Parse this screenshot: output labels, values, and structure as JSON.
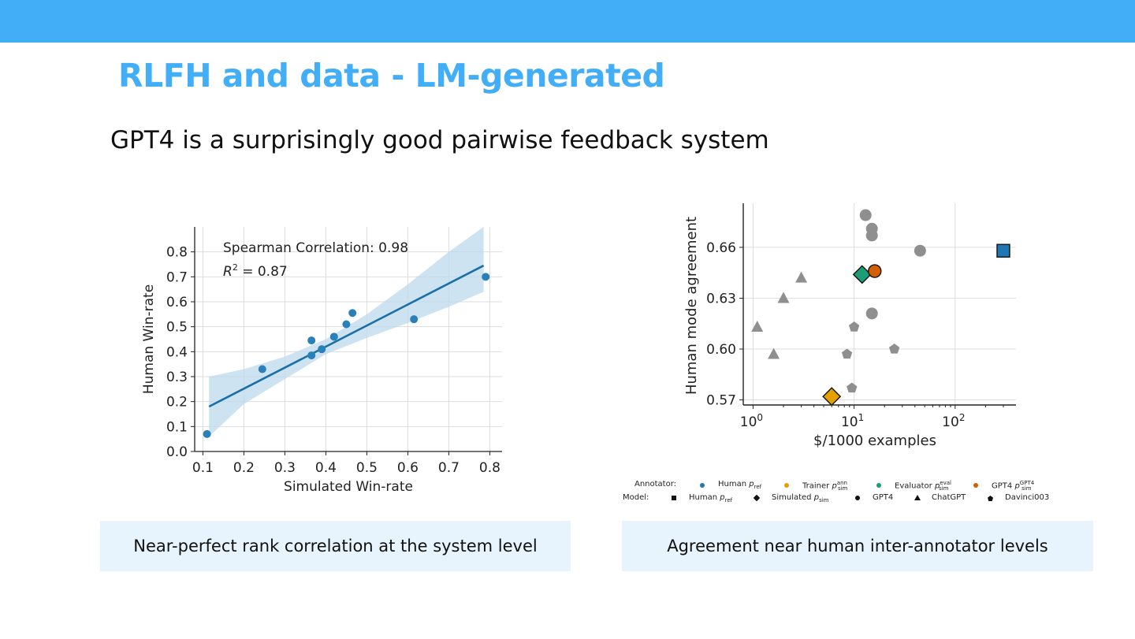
{
  "slide": {
    "title": "RLFH and data - LM-generated",
    "subtitle": "GPT4 is a surprisingly good pairwise feedback system",
    "captions": {
      "left": "Near-perfect rank correlation at the system level",
      "right": "Agreement near human inter-annotator levels"
    },
    "colors": {
      "bar": "#42aef8",
      "title": "#42aef8",
      "caption_bg": "#e8f4fd"
    }
  },
  "chart_data": [
    {
      "type": "scatter",
      "xlabel": "Simulated Win-rate",
      "ylabel": "Human Win-rate",
      "xlim": [
        0.08,
        0.83
      ],
      "ylim": [
        0.0,
        0.9
      ],
      "xticks": [
        0.1,
        0.2,
        0.3,
        0.4,
        0.5,
        0.6,
        0.7,
        0.8
      ],
      "yticks": [
        0.0,
        0.1,
        0.2,
        0.3,
        0.4,
        0.5,
        0.6,
        0.7,
        0.8
      ],
      "xtick_labels": [
        "0.1",
        "0.2",
        "0.3",
        "0.4",
        "0.5",
        "0.6",
        "0.7",
        "0.8"
      ],
      "ytick_labels": [
        "0.0",
        "0.1",
        "0.2",
        "0.3",
        "0.4",
        "0.5",
        "0.6",
        "0.7",
        "0.8"
      ],
      "grid": true,
      "annotations": [
        "Spearman Correlation: 0.98",
        "R",
        "2",
        " = 0.87"
      ],
      "points": [
        {
          "x": 0.11,
          "y": 0.07
        },
        {
          "x": 0.245,
          "y": 0.33
        },
        {
          "x": 0.365,
          "y": 0.445
        },
        {
          "x": 0.365,
          "y": 0.385
        },
        {
          "x": 0.39,
          "y": 0.41
        },
        {
          "x": 0.42,
          "y": 0.46
        },
        {
          "x": 0.45,
          "y": 0.51
        },
        {
          "x": 0.465,
          "y": 0.555
        },
        {
          "x": 0.615,
          "y": 0.53
        },
        {
          "x": 0.79,
          "y": 0.7
        }
      ],
      "fit_line": [
        {
          "x": 0.115,
          "y": 0.18
        },
        {
          "x": 0.785,
          "y": 0.745
        }
      ],
      "ci_band": {
        "x": [
          0.115,
          0.2,
          0.3,
          0.4,
          0.5,
          0.6,
          0.7,
          0.785
        ],
        "lower": [
          0.06,
          0.19,
          0.29,
          0.39,
          0.455,
          0.515,
          0.58,
          0.64
        ],
        "upper": [
          0.3,
          0.33,
          0.38,
          0.45,
          0.55,
          0.67,
          0.8,
          0.93
        ]
      },
      "colors": {
        "points": "#2a80b9",
        "line": "#1b6fa8",
        "band": "#bcd9ec"
      }
    },
    {
      "type": "scatter",
      "xlabel": "$/1000 examples",
      "ylabel": "Human mode agreement",
      "xscale": "log",
      "xlim": [
        0.8,
        400
      ],
      "ylim": [
        0.567,
        0.686
      ],
      "xticks": [
        1,
        10,
        100
      ],
      "xtick_labels": [
        "10",
        "0",
        "10",
        "1",
        "10",
        "2"
      ],
      "yticks": [
        0.57,
        0.6,
        0.63,
        0.66
      ],
      "ytick_labels": [
        "0.57",
        "0.60",
        "0.63",
        "0.66"
      ],
      "grid": true,
      "points": [
        {
          "x": 1.1,
          "y": 0.613,
          "model": "ChatGPT",
          "annotator": "none",
          "marker": "triangle",
          "color": "#8f8f8f"
        },
        {
          "x": 1.6,
          "y": 0.597,
          "model": "ChatGPT",
          "annotator": "none",
          "marker": "triangle",
          "color": "#8f8f8f"
        },
        {
          "x": 2.0,
          "y": 0.63,
          "model": "ChatGPT",
          "annotator": "none",
          "marker": "triangle",
          "color": "#8f8f8f"
        },
        {
          "x": 3.0,
          "y": 0.642,
          "model": "ChatGPT",
          "annotator": "none",
          "marker": "triangle",
          "color": "#8f8f8f"
        },
        {
          "x": 8.5,
          "y": 0.597,
          "model": "Davinci003",
          "annotator": "none",
          "marker": "pentagon",
          "color": "#8f8f8f"
        },
        {
          "x": 9.5,
          "y": 0.577,
          "model": "Davinci003",
          "annotator": "none",
          "marker": "pentagon",
          "color": "#8f8f8f"
        },
        {
          "x": 10.0,
          "y": 0.613,
          "model": "Davinci003",
          "annotator": "none",
          "marker": "pentagon",
          "color": "#8f8f8f"
        },
        {
          "x": 25.0,
          "y": 0.6,
          "model": "Davinci003",
          "annotator": "none",
          "marker": "pentagon",
          "color": "#8f8f8f"
        },
        {
          "x": 13.0,
          "y": 0.679,
          "model": "GPT4",
          "annotator": "none",
          "marker": "circle",
          "color": "#8f8f8f"
        },
        {
          "x": 15.0,
          "y": 0.671,
          "model": "GPT4",
          "annotator": "none",
          "marker": "circle",
          "color": "#8f8f8f"
        },
        {
          "x": 15.0,
          "y": 0.667,
          "model": "GPT4",
          "annotator": "none",
          "marker": "circle",
          "color": "#8f8f8f"
        },
        {
          "x": 15.0,
          "y": 0.621,
          "model": "GPT4",
          "annotator": "none",
          "marker": "circle",
          "color": "#8f8f8f"
        },
        {
          "x": 45.0,
          "y": 0.658,
          "model": "GPT4",
          "annotator": "none",
          "marker": "circle",
          "color": "#8f8f8f"
        },
        {
          "x": 12.0,
          "y": 0.644,
          "model": "Simulated",
          "annotator": "Evaluator",
          "marker": "diamond",
          "color": "#1b9e77"
        },
        {
          "x": 16.0,
          "y": 0.646,
          "model": "GPT4",
          "annotator": "GPT4",
          "marker": "circle",
          "color": "#d55e00"
        },
        {
          "x": 6.0,
          "y": 0.572,
          "model": "Simulated",
          "annotator": "Trainer",
          "marker": "diamond",
          "color": "#e69f00"
        },
        {
          "x": 300.0,
          "y": 0.658,
          "model": "Human",
          "annotator": "Human",
          "marker": "square",
          "color": "#1f77b4"
        }
      ],
      "legend": {
        "annotator_title": "Annotator:",
        "annotator_items": [
          {
            "label": "Human",
            "sub": "ref",
            "sup": "",
            "color": "#1f77b4"
          },
          {
            "label": "Trainer",
            "sub": "sim",
            "sup": "ann",
            "color": "#e69f00"
          },
          {
            "label": "Evaluator",
            "sub": "sim",
            "sup": "eval",
            "color": "#1b9e77"
          },
          {
            "label": "GPT4",
            "sub": "sim",
            "sup": "GPT4",
            "color": "#d55e00"
          }
        ],
        "model_title": "Model:",
        "model_items": [
          {
            "label": "Human",
            "sub": "ref",
            "marker": "square"
          },
          {
            "label": "Simulated",
            "sub": "sim",
            "marker": "diamond"
          },
          {
            "label": "GPT4",
            "sub": "",
            "marker": "circle"
          },
          {
            "label": "ChatGPT",
            "sub": "",
            "marker": "triangle"
          },
          {
            "label": "Davinci003",
            "sub": "",
            "marker": "pentagon"
          }
        ],
        "p_symbol": "p"
      }
    }
  ]
}
